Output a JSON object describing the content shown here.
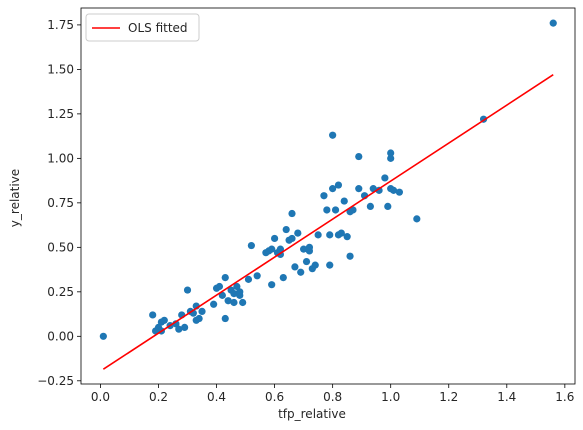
{
  "chart_data": {
    "type": "scatter",
    "xlabel": "tfp_relative",
    "ylabel": "y_relative",
    "xlim": [
      -0.067,
      1.635
    ],
    "ylim": [
      -0.268,
      1.845
    ],
    "x_ticks": [
      "0.0",
      "0.2",
      "0.4",
      "0.6",
      "0.8",
      "1.0",
      "1.2",
      "1.4",
      "1.6"
    ],
    "x_tick_values": [
      0.0,
      0.2,
      0.4,
      0.6,
      0.8,
      1.0,
      1.2,
      1.4,
      1.6
    ],
    "y_ticks": [
      "−0.25",
      "0.00",
      "0.25",
      "0.50",
      "0.75",
      "1.00",
      "1.25",
      "1.50",
      "1.75"
    ],
    "y_tick_values": [
      -0.25,
      0.0,
      0.25,
      0.5,
      0.75,
      1.0,
      1.25,
      1.5,
      1.75
    ],
    "grid": false,
    "legend": {
      "position": "top-left",
      "entries": [
        "OLS fitted"
      ]
    },
    "colors": {
      "points": "#1f77b4",
      "fit_line": "#ff0000"
    },
    "series": [
      {
        "kind": "scatter",
        "x": [
          0.01,
          0.18,
          0.19,
          0.2,
          0.21,
          0.21,
          0.22,
          0.24,
          0.26,
          0.27,
          0.28,
          0.29,
          0.3,
          0.31,
          0.32,
          0.33,
          0.33,
          0.34,
          0.35,
          0.39,
          0.4,
          0.41,
          0.42,
          0.43,
          0.43,
          0.44,
          0.45,
          0.46,
          0.46,
          0.47,
          0.48,
          0.48,
          0.49,
          0.51,
          0.52,
          0.54,
          0.57,
          0.58,
          0.59,
          0.59,
          0.6,
          0.61,
          0.62,
          0.62,
          0.63,
          0.64,
          0.65,
          0.66,
          0.66,
          0.67,
          0.68,
          0.69,
          0.7,
          0.71,
          0.72,
          0.72,
          0.73,
          0.74,
          0.75,
          0.77,
          0.78,
          0.79,
          0.79,
          0.8,
          0.8,
          0.81,
          0.82,
          0.82,
          0.83,
          0.84,
          0.85,
          0.86,
          0.86,
          0.87,
          0.89,
          0.89,
          0.91,
          0.93,
          0.94,
          0.96,
          0.98,
          0.99,
          1.0,
          1.0,
          1.0,
          1.01,
          1.03,
          1.09,
          1.32,
          1.56
        ],
        "y": [
          0.0,
          0.12,
          0.03,
          0.05,
          0.08,
          0.03,
          0.09,
          0.06,
          0.07,
          0.04,
          0.12,
          0.05,
          0.26,
          0.14,
          0.13,
          0.17,
          0.09,
          0.1,
          0.14,
          0.18,
          0.27,
          0.28,
          0.23,
          0.1,
          0.33,
          0.2,
          0.26,
          0.24,
          0.19,
          0.28,
          0.23,
          0.25,
          0.19,
          0.32,
          0.51,
          0.34,
          0.47,
          0.48,
          0.49,
          0.29,
          0.55,
          0.47,
          0.46,
          0.49,
          0.33,
          0.6,
          0.54,
          0.55,
          0.69,
          0.39,
          0.58,
          0.36,
          0.49,
          0.42,
          0.48,
          0.5,
          0.38,
          0.4,
          0.57,
          0.79,
          0.71,
          0.57,
          0.4,
          0.83,
          1.13,
          0.71,
          0.57,
          0.85,
          0.58,
          0.76,
          0.56,
          0.45,
          0.7,
          0.71,
          0.83,
          1.01,
          0.79,
          0.73,
          0.83,
          0.82,
          0.89,
          0.73,
          1.0,
          1.03,
          0.83,
          0.82,
          0.81,
          0.66,
          1.22,
          1.76
        ]
      },
      {
        "kind": "line",
        "name": "OLS fitted",
        "x": [
          0.01,
          1.56
        ],
        "y": [
          -0.185,
          1.47
        ]
      }
    ]
  }
}
